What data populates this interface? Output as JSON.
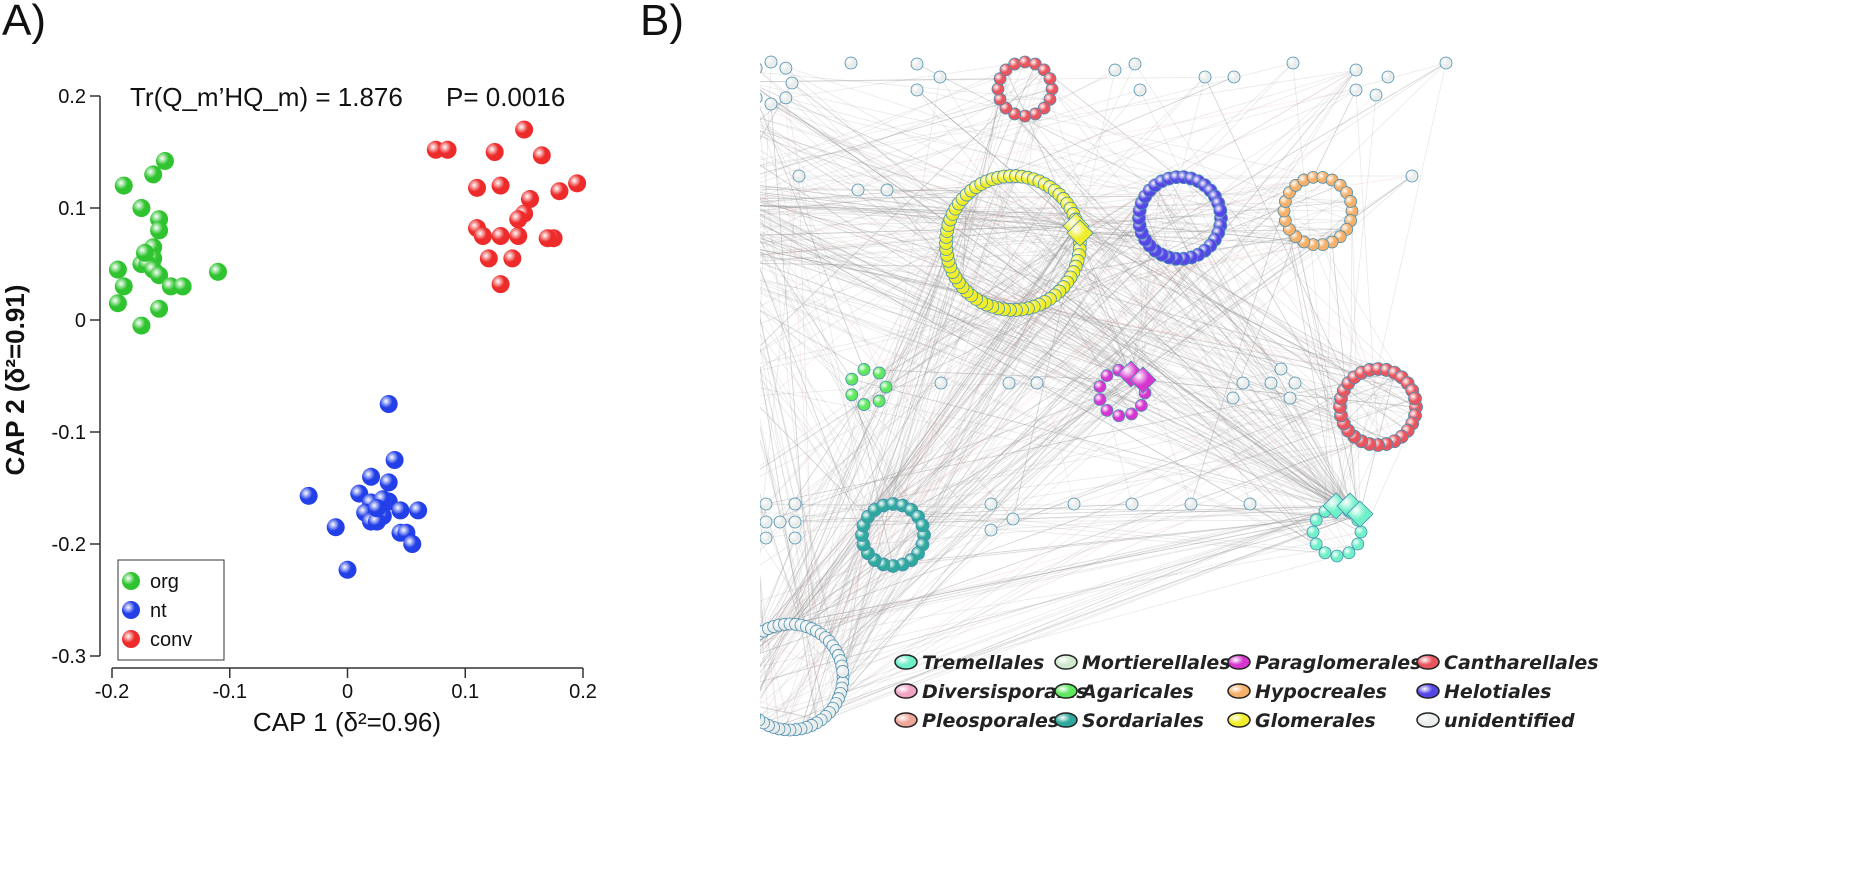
{
  "panel_a_label": "A)",
  "panel_b_label": "B)",
  "chart_data": [
    {
      "type": "scatter",
      "title": "Tr(Q_m’HQ_m) = 1.876",
      "pvalue": "P= 0.0016",
      "xlabel": "CAP 1 (δ²=0.96)",
      "ylabel": "CAP 2 (δ²=0.91)",
      "xlim": [
        -0.2,
        0.2
      ],
      "ylim": [
        -0.3,
        0.2
      ],
      "xticks": [
        -0.2,
        -0.1,
        0,
        0.1,
        0.2
      ],
      "xtick_labels": [
        "-0.2",
        "-0.1",
        "0",
        "0.1",
        "0.2"
      ],
      "yticks": [
        0.2,
        0.1,
        0,
        -0.1,
        -0.2,
        -0.3
      ],
      "ytick_labels": [
        "0.2",
        "0.1",
        "0",
        "-0.1",
        "-0.2",
        "-0.3"
      ],
      "legend_position": "bottom-left",
      "series": [
        {
          "name": "org",
          "color": "#2fc42f",
          "x": [
            -0.155,
            -0.19,
            -0.165,
            -0.175,
            -0.16,
            -0.16,
            -0.165,
            -0.165,
            -0.175,
            -0.17,
            -0.165,
            -0.195,
            -0.19,
            -0.16,
            -0.15,
            -0.14,
            -0.11,
            -0.195,
            -0.16,
            -0.175,
            -0.172
          ],
          "y": [
            0.142,
            0.12,
            0.13,
            0.1,
            0.09,
            0.08,
            0.065,
            0.055,
            0.05,
            0.05,
            0.045,
            0.045,
            0.03,
            0.04,
            0.03,
            0.03,
            0.043,
            0.015,
            0.01,
            -0.005,
            0.06
          ]
        },
        {
          "name": "nt",
          "color": "#2340e8",
          "x": [
            0.035,
            0.04,
            0.02,
            0.035,
            -0.033,
            0.01,
            0.02,
            0.025,
            0.035,
            0.045,
            0.06,
            -0.01,
            0.015,
            0.02,
            0.03,
            0.025,
            0.045,
            0.05,
            0.055,
            0.0,
            0.03,
            0.025
          ],
          "y": [
            -0.075,
            -0.125,
            -0.14,
            -0.145,
            -0.157,
            -0.155,
            -0.163,
            -0.17,
            -0.162,
            -0.17,
            -0.17,
            -0.185,
            -0.172,
            -0.18,
            -0.175,
            -0.18,
            -0.19,
            -0.19,
            -0.2,
            -0.223,
            -0.16,
            -0.168
          ]
        },
        {
          "name": "conv",
          "color": "#ee2b2b",
          "x": [
            0.075,
            0.085,
            0.15,
            0.125,
            0.165,
            0.13,
            0.11,
            0.155,
            0.18,
            0.195,
            0.15,
            0.175,
            0.13,
            0.11,
            0.145,
            0.115,
            0.14,
            0.17,
            0.12,
            0.145,
            0.13
          ],
          "y": [
            0.152,
            0.152,
            0.17,
            0.15,
            0.147,
            0.12,
            0.118,
            0.108,
            0.115,
            0.122,
            0.095,
            0.073,
            0.075,
            0.082,
            0.075,
            0.075,
            0.055,
            0.073,
            0.055,
            0.09,
            0.032
          ]
        }
      ]
    },
    {
      "type": "network",
      "legend": [
        {
          "name": "Tremellales",
          "color": "#6ff0c8"
        },
        {
          "name": "Mortierellales",
          "color": "#cfe9cf"
        },
        {
          "name": "Paraglomerales",
          "color": "#d636cf"
        },
        {
          "name": "Cantharellales",
          "color": "#e9555e"
        },
        {
          "name": "Diversisporales",
          "color": "#f1a3c4"
        },
        {
          "name": "Agaricales",
          "color": "#5fe85f"
        },
        {
          "name": "Hypocreales",
          "color": "#f5b06a"
        },
        {
          "name": "Helotiales",
          "color": "#5547e6"
        },
        {
          "name": "Pleosporales",
          "color": "#f1a69a"
        },
        {
          "name": "Sordariales",
          "color": "#2ea99e"
        },
        {
          "name": "Glomerales",
          "color": "#f0ee2a"
        },
        {
          "name": "unidentified",
          "color": "#e8ecea"
        }
      ]
    }
  ]
}
